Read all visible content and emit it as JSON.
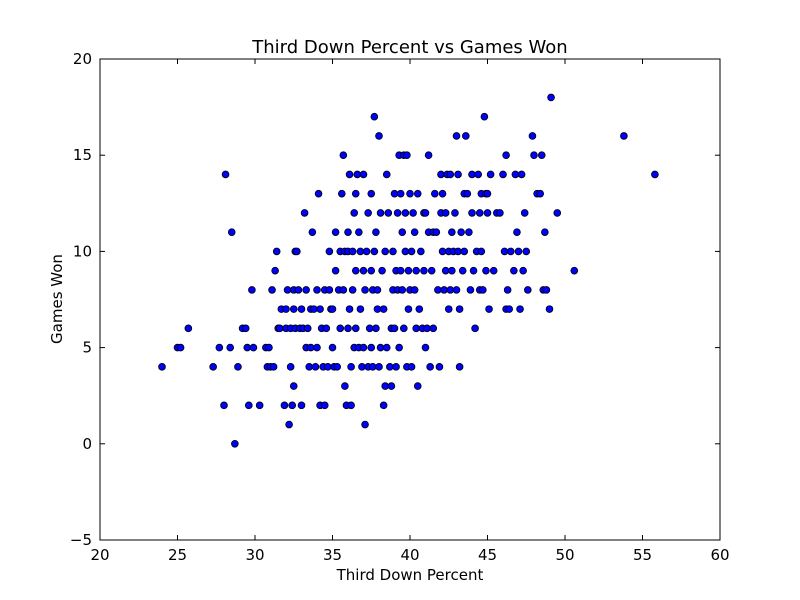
{
  "chart_data": {
    "type": "scatter",
    "title": "Third Down Percent vs Games Won",
    "xlabel": "Third Down Percent",
    "ylabel": "Games Won",
    "xlim": [
      20,
      60
    ],
    "ylim": [
      -5,
      20
    ],
    "x_ticks": [
      20,
      25,
      30,
      35,
      40,
      45,
      50,
      55,
      60
    ],
    "y_ticks": [
      -5,
      0,
      5,
      10,
      15,
      20
    ],
    "grid": false,
    "legend": "none",
    "marker_color": "#0000ff",
    "marker_edge": "#000000",
    "series": [
      {
        "points": [
          [
            24.0,
            4
          ],
          [
            25.0,
            5
          ],
          [
            25.2,
            5
          ],
          [
            25.7,
            6
          ],
          [
            27.3,
            4
          ],
          [
            27.7,
            5
          ],
          [
            28.0,
            2
          ],
          [
            28.1,
            14
          ],
          [
            28.4,
            5
          ],
          [
            28.5,
            11
          ],
          [
            28.7,
            0
          ],
          [
            28.9,
            4
          ],
          [
            29.2,
            6
          ],
          [
            29.4,
            6
          ],
          [
            29.5,
            5
          ],
          [
            29.6,
            2
          ],
          [
            29.8,
            8
          ],
          [
            29.9,
            5
          ],
          [
            30.3,
            2
          ],
          [
            30.7,
            5
          ],
          [
            30.8,
            4
          ],
          [
            30.9,
            5
          ],
          [
            31.0,
            4
          ],
          [
            31.1,
            8
          ],
          [
            31.2,
            4
          ],
          [
            31.3,
            9
          ],
          [
            31.4,
            10
          ],
          [
            31.5,
            6
          ],
          [
            31.6,
            6
          ],
          [
            31.7,
            7
          ],
          [
            31.9,
            2
          ],
          [
            32.0,
            6
          ],
          [
            32.0,
            7
          ],
          [
            32.1,
            8
          ],
          [
            32.2,
            1
          ],
          [
            32.3,
            4
          ],
          [
            32.3,
            6
          ],
          [
            32.4,
            2
          ],
          [
            32.5,
            3
          ],
          [
            32.5,
            7
          ],
          [
            32.5,
            8
          ],
          [
            32.6,
            6
          ],
          [
            32.6,
            10
          ],
          [
            32.7,
            10
          ],
          [
            32.8,
            8
          ],
          [
            32.9,
            6
          ],
          [
            33.0,
            2
          ],
          [
            33.0,
            7
          ],
          [
            33.1,
            6
          ],
          [
            33.2,
            12
          ],
          [
            33.3,
            5
          ],
          [
            33.3,
            8
          ],
          [
            33.4,
            6
          ],
          [
            33.5,
            4
          ],
          [
            33.6,
            5
          ],
          [
            33.6,
            7
          ],
          [
            33.7,
            11
          ],
          [
            33.8,
            7
          ],
          [
            33.9,
            4
          ],
          [
            34.0,
            5
          ],
          [
            34.0,
            8
          ],
          [
            34.1,
            13
          ],
          [
            34.2,
            2
          ],
          [
            34.2,
            7
          ],
          [
            34.3,
            6
          ],
          [
            34.4,
            4
          ],
          [
            34.5,
            8
          ],
          [
            34.5,
            2
          ],
          [
            34.6,
            6
          ],
          [
            34.7,
            4
          ],
          [
            34.8,
            8
          ],
          [
            34.8,
            10
          ],
          [
            34.9,
            7
          ],
          [
            35.0,
            5
          ],
          [
            35.0,
            7
          ],
          [
            35.1,
            4
          ],
          [
            35.2,
            9
          ],
          [
            35.2,
            11
          ],
          [
            35.3,
            4
          ],
          [
            35.4,
            8
          ],
          [
            35.5,
            6
          ],
          [
            35.5,
            10
          ],
          [
            35.6,
            13
          ],
          [
            35.7,
            15
          ],
          [
            35.7,
            8
          ],
          [
            35.8,
            10
          ],
          [
            35.8,
            3
          ],
          [
            35.9,
            2
          ],
          [
            36.0,
            6
          ],
          [
            36.0,
            10
          ],
          [
            36.0,
            11
          ],
          [
            36.1,
            7
          ],
          [
            36.1,
            14
          ],
          [
            36.2,
            4
          ],
          [
            36.2,
            2
          ],
          [
            36.3,
            10
          ],
          [
            36.3,
            8
          ],
          [
            36.4,
            5
          ],
          [
            36.4,
            12
          ],
          [
            36.5,
            6
          ],
          [
            36.5,
            9
          ],
          [
            36.5,
            13
          ],
          [
            36.6,
            14
          ],
          [
            36.7,
            5
          ],
          [
            36.7,
            11
          ],
          [
            36.8,
            7
          ],
          [
            36.8,
            10
          ],
          [
            36.9,
            4
          ],
          [
            37.0,
            14
          ],
          [
            37.0,
            9
          ],
          [
            37.0,
            5
          ],
          [
            37.1,
            1
          ],
          [
            37.1,
            8
          ],
          [
            37.2,
            10
          ],
          [
            37.3,
            12
          ],
          [
            37.3,
            4
          ],
          [
            37.4,
            6
          ],
          [
            37.5,
            13
          ],
          [
            37.5,
            9
          ],
          [
            37.5,
            5
          ],
          [
            37.6,
            8
          ],
          [
            37.6,
            4
          ],
          [
            37.7,
            17
          ],
          [
            37.7,
            10
          ],
          [
            37.8,
            6
          ],
          [
            37.8,
            11
          ],
          [
            37.9,
            7
          ],
          [
            37.9,
            8
          ],
          [
            38.0,
            4
          ],
          [
            38.0,
            16
          ],
          [
            38.1,
            12
          ],
          [
            38.1,
            5
          ],
          [
            38.2,
            9
          ],
          [
            38.3,
            2
          ],
          [
            38.3,
            7
          ],
          [
            38.4,
            10
          ],
          [
            38.4,
            3
          ],
          [
            38.5,
            5
          ],
          [
            38.5,
            14
          ],
          [
            38.6,
            12
          ],
          [
            38.7,
            4
          ],
          [
            38.8,
            6
          ],
          [
            38.8,
            3
          ],
          [
            38.9,
            10
          ],
          [
            38.9,
            8
          ],
          [
            39.0,
            13
          ],
          [
            39.0,
            6
          ],
          [
            39.1,
            9
          ],
          [
            39.1,
            4
          ],
          [
            39.2,
            8
          ],
          [
            39.2,
            12
          ],
          [
            39.3,
            15
          ],
          [
            39.3,
            5
          ],
          [
            39.4,
            9
          ],
          [
            39.4,
            13
          ],
          [
            39.5,
            8
          ],
          [
            39.5,
            11
          ],
          [
            39.6,
            15
          ],
          [
            39.6,
            6
          ],
          [
            39.7,
            12
          ],
          [
            39.7,
            10
          ],
          [
            39.8,
            15
          ],
          [
            39.8,
            4
          ],
          [
            39.9,
            7
          ],
          [
            39.9,
            9
          ],
          [
            40.0,
            13
          ],
          [
            40.0,
            8
          ],
          [
            40.1,
            10
          ],
          [
            40.1,
            4
          ],
          [
            40.2,
            12
          ],
          [
            40.3,
            11
          ],
          [
            40.3,
            8
          ],
          [
            40.4,
            9
          ],
          [
            40.4,
            6
          ],
          [
            40.5,
            3
          ],
          [
            40.5,
            13
          ],
          [
            40.6,
            7
          ],
          [
            40.7,
            10
          ],
          [
            40.8,
            6
          ],
          [
            40.9,
            12
          ],
          [
            40.9,
            9
          ],
          [
            41.0,
            5
          ],
          [
            41.0,
            12
          ],
          [
            41.1,
            6
          ],
          [
            41.2,
            15
          ],
          [
            41.2,
            11
          ],
          [
            41.3,
            4
          ],
          [
            41.4,
            9
          ],
          [
            41.5,
            11
          ],
          [
            41.5,
            6
          ],
          [
            41.6,
            13
          ],
          [
            41.7,
            11
          ],
          [
            41.8,
            8
          ],
          [
            41.9,
            4
          ],
          [
            42.0,
            12
          ],
          [
            42.0,
            14
          ],
          [
            42.1,
            10
          ],
          [
            42.1,
            13
          ],
          [
            42.2,
            8
          ],
          [
            42.3,
            9
          ],
          [
            42.3,
            12
          ],
          [
            42.4,
            14
          ],
          [
            42.5,
            7
          ],
          [
            42.5,
            10
          ],
          [
            42.6,
            8
          ],
          [
            42.6,
            14
          ],
          [
            42.7,
            9
          ],
          [
            42.7,
            11
          ],
          [
            42.8,
            10
          ],
          [
            42.9,
            12
          ],
          [
            43.0,
            8
          ],
          [
            43.0,
            16
          ],
          [
            43.1,
            10
          ],
          [
            43.1,
            14
          ],
          [
            43.2,
            7
          ],
          [
            43.2,
            4
          ],
          [
            43.3,
            11
          ],
          [
            43.4,
            9
          ],
          [
            43.5,
            13
          ],
          [
            43.5,
            10
          ],
          [
            43.6,
            16
          ],
          [
            43.7,
            13
          ],
          [
            43.8,
            11
          ],
          [
            43.9,
            8
          ],
          [
            44.0,
            12
          ],
          [
            44.0,
            14
          ],
          [
            44.1,
            9
          ],
          [
            44.2,
            6
          ],
          [
            44.3,
            10
          ],
          [
            44.4,
            14
          ],
          [
            44.5,
            8
          ],
          [
            44.5,
            12
          ],
          [
            44.6,
            13
          ],
          [
            44.6,
            10
          ],
          [
            44.7,
            8
          ],
          [
            44.8,
            17
          ],
          [
            44.9,
            9
          ],
          [
            44.9,
            13
          ],
          [
            45.0,
            12
          ],
          [
            45.0,
            13
          ],
          [
            45.1,
            7
          ],
          [
            45.2,
            14
          ],
          [
            45.4,
            9
          ],
          [
            45.6,
            12
          ],
          [
            45.8,
            12
          ],
          [
            46.0,
            14
          ],
          [
            46.1,
            10
          ],
          [
            46.2,
            15
          ],
          [
            46.2,
            7
          ],
          [
            46.3,
            8
          ],
          [
            46.4,
            7
          ],
          [
            46.5,
            10
          ],
          [
            46.7,
            9
          ],
          [
            46.8,
            14
          ],
          [
            46.9,
            11
          ],
          [
            47.0,
            10
          ],
          [
            47.1,
            7
          ],
          [
            47.2,
            14
          ],
          [
            47.3,
            9
          ],
          [
            47.4,
            12
          ],
          [
            47.5,
            10
          ],
          [
            47.6,
            8
          ],
          [
            47.9,
            16
          ],
          [
            48.0,
            15
          ],
          [
            48.2,
            13
          ],
          [
            48.4,
            13
          ],
          [
            48.5,
            15
          ],
          [
            48.6,
            8
          ],
          [
            48.7,
            11
          ],
          [
            48.8,
            8
          ],
          [
            49.0,
            7
          ],
          [
            49.1,
            18
          ],
          [
            49.5,
            12
          ],
          [
            50.6,
            9
          ],
          [
            53.8,
            16
          ],
          [
            55.8,
            14
          ]
        ]
      }
    ]
  }
}
